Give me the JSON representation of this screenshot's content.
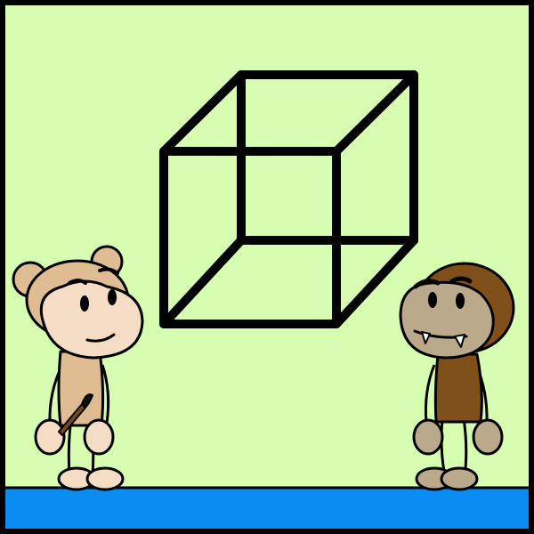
{
  "scene": {
    "background_color": "#d6fdb0",
    "border_color": "#000000",
    "floor_color": "#0b8cf2",
    "outline_color": "#000000"
  },
  "cube": {
    "shape": "wireframe-cube",
    "stroke_color": "#000000"
  },
  "characters": [
    {
      "name": "light-monkey",
      "fur_color": "#e0bc93",
      "face_color": "#f5dcc4",
      "holding": "paintbrush",
      "expression": "smile"
    },
    {
      "name": "dark-monkey",
      "fur_color": "#80501a",
      "face_color": "#bba98c",
      "holding": "none",
      "expression": "fangs"
    }
  ],
  "paintbrush": {
    "handle_color": "#7a4a1c",
    "tip_color": "#111111"
  }
}
